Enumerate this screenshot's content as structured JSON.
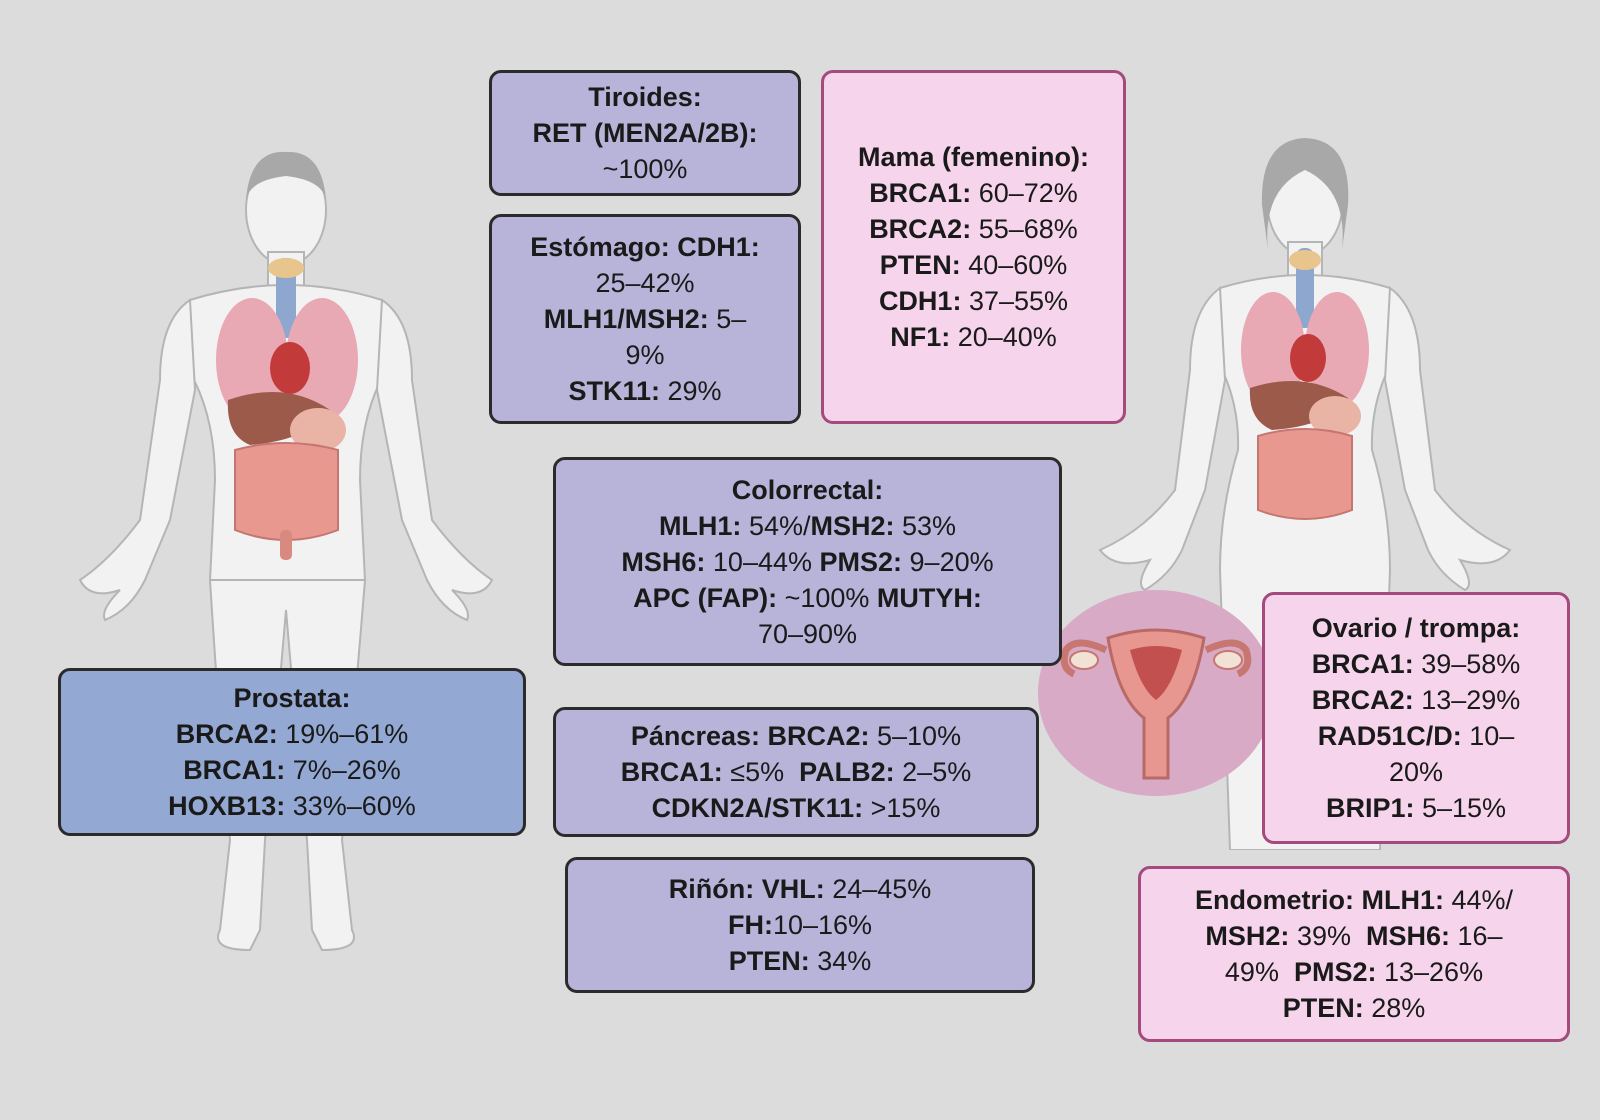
{
  "colors": {
    "background": "#dcdcdc",
    "purple_box": "#b8b3d9",
    "blue_box": "#94a8d4",
    "pink_box": "#f6d5ec",
    "pink_border": "#a44a7c",
    "dark_border": "#2b2b2b"
  },
  "figures": {
    "male": "male-body-anatomy",
    "female": "female-body-anatomy",
    "uterus": "uterus-ovaries"
  },
  "boxes": {
    "tiroides": {
      "lines": [
        [
          {
            "t": "Tiroides:",
            "b": true
          }
        ],
        [
          {
            "t": "RET (MEN2A/2B):",
            "b": true
          }
        ],
        [
          {
            "t": "~100%",
            "b": false
          }
        ]
      ]
    },
    "estomago": {
      "lines": [
        [
          {
            "t": "Estómago: CDH1:",
            "b": true
          }
        ],
        [
          {
            "t": "25–42%",
            "b": false
          }
        ],
        [
          {
            "t": "MLH1/MSH2:",
            "b": true
          },
          {
            "t": " 5–",
            "b": false
          }
        ],
        [
          {
            "t": "9%",
            "b": false
          }
        ],
        [
          {
            "t": "STK11:",
            "b": true
          },
          {
            "t": " 29%",
            "b": false
          }
        ]
      ]
    },
    "mama": {
      "lines": [
        [
          {
            "t": "Mama (femenino):",
            "b": true
          }
        ],
        [
          {
            "t": "BRCA1:",
            "b": true
          },
          {
            "t": " 60–72%",
            "b": false
          }
        ],
        [
          {
            "t": "BRCA2:",
            "b": true
          },
          {
            "t": " 55–68%",
            "b": false
          }
        ],
        [
          {
            "t": "PTEN:",
            "b": true
          },
          {
            "t": " 40–60%",
            "b": false
          }
        ],
        [
          {
            "t": "CDH1:",
            "b": true
          },
          {
            "t": " 37–55%",
            "b": false
          }
        ],
        [
          {
            "t": "NF1:",
            "b": true
          },
          {
            "t": " 20–40%",
            "b": false
          }
        ]
      ]
    },
    "colorrectal": {
      "lines": [
        [
          {
            "t": "Colorrectal:",
            "b": true
          }
        ],
        [
          {
            "t": "MLH1:",
            "b": true
          },
          {
            "t": " 54%/",
            "b": false
          },
          {
            "t": "MSH2:",
            "b": true
          },
          {
            "t": " 53%",
            "b": false
          }
        ],
        [
          {
            "t": "MSH6:",
            "b": true
          },
          {
            "t": " 10–44% ",
            "b": false
          },
          {
            "t": "PMS2:",
            "b": true
          },
          {
            "t": " 9–20%",
            "b": false
          }
        ],
        [
          {
            "t": "APC (FAP):",
            "b": true
          },
          {
            "t": " ~100% ",
            "b": false
          },
          {
            "t": "MUTYH:",
            "b": true
          }
        ],
        [
          {
            "t": "70–90%",
            "b": false
          }
        ]
      ]
    },
    "prostata": {
      "lines": [
        [
          {
            "t": "Prostata:",
            "b": true
          }
        ],
        [
          {
            "t": "BRCA2:",
            "b": true
          },
          {
            "t": " 19%–61%",
            "b": false
          }
        ],
        [
          {
            "t": "BRCA1:",
            "b": true
          },
          {
            "t": " 7%–26%",
            "b": false
          }
        ],
        [
          {
            "t": "HOXB13:",
            "b": true
          },
          {
            "t": " 33%–60%",
            "b": false
          }
        ]
      ]
    },
    "pancreas": {
      "lines": [
        [
          {
            "t": "Páncreas: BRCA2:",
            "b": true
          },
          {
            "t": " 5–10%",
            "b": false
          }
        ],
        [
          {
            "t": "BRCA1:",
            "b": true
          },
          {
            "t": " ≤5%  ",
            "b": false
          },
          {
            "t": "PALB2:",
            "b": true
          },
          {
            "t": " 2–5%",
            "b": false
          }
        ],
        [
          {
            "t": "CDKN2A/STK11:",
            "b": true
          },
          {
            "t": " >15%",
            "b": false
          }
        ]
      ]
    },
    "rinon": {
      "lines": [
        [
          {
            "t": "Riñón: VHL:",
            "b": true
          },
          {
            "t": " 24–45%",
            "b": false
          }
        ],
        [
          {
            "t": "FH:",
            "b": true
          },
          {
            "t": "10–16%",
            "b": false
          }
        ],
        [
          {
            "t": "PTEN:",
            "b": true
          },
          {
            "t": " 34%",
            "b": false
          }
        ]
      ]
    },
    "ovario": {
      "lines": [
        [
          {
            "t": "Ovario / trompa:",
            "b": true
          }
        ],
        [
          {
            "t": "BRCA1:",
            "b": true
          },
          {
            "t": " 39–58%",
            "b": false
          }
        ],
        [
          {
            "t": "BRCA2:",
            "b": true
          },
          {
            "t": " 13–29%",
            "b": false
          }
        ],
        [
          {
            "t": "RAD51C/D:",
            "b": true
          },
          {
            "t": " 10–",
            "b": false
          }
        ],
        [
          {
            "t": "20%",
            "b": false
          }
        ],
        [
          {
            "t": "BRIP1:",
            "b": true
          },
          {
            "t": " 5–15%",
            "b": false
          }
        ]
      ]
    },
    "endometrio": {
      "lines": [
        [
          {
            "t": "Endometrio: MLH1:",
            "b": true
          },
          {
            "t": " 44%/",
            "b": false
          }
        ],
        [
          {
            "t": "MSH2:",
            "b": true
          },
          {
            "t": " 39%  ",
            "b": false
          },
          {
            "t": "MSH6:",
            "b": true
          },
          {
            "t": " 16–",
            "b": false
          }
        ],
        [
          {
            "t": "49%  ",
            "b": false
          },
          {
            "t": "PMS2:",
            "b": true
          },
          {
            "t": " 13–26%",
            "b": false
          }
        ],
        [
          {
            "t": "PTEN:",
            "b": true
          },
          {
            "t": " 28%",
            "b": false
          }
        ]
      ]
    }
  }
}
